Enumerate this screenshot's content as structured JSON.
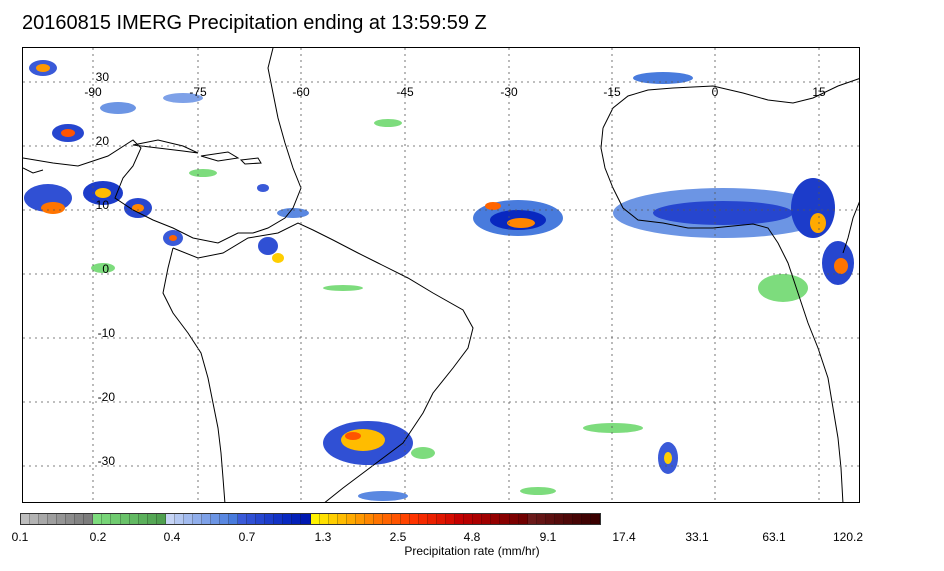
{
  "title": "20160815 IMERG Precipitation ending at 13:59:59 Z",
  "map": {
    "lon_ticks": [
      "-90",
      "-75",
      "-60",
      "-45",
      "-30",
      "-15",
      "0",
      "15"
    ],
    "lat_ticks": [
      "30",
      "20",
      "10",
      "0",
      "-10",
      "-20",
      "-30"
    ],
    "coastline_color": "#000000",
    "grid_color": "#555555"
  },
  "colorbar": {
    "title": "Precipitation rate (mm/hr)",
    "labels": [
      "0.1",
      "0.2",
      "0.4",
      "0.7",
      "1.3",
      "2.5",
      "4.8",
      "9.1",
      "17.4",
      "33.1",
      "63.1",
      "120.2"
    ],
    "colors": [
      "#bdbdbd",
      "#b3b3b3",
      "#a8a8a8",
      "#9e9e9e",
      "#959595",
      "#8c8c8c",
      "#838383",
      "#7c7c7c",
      "#7ddc7d",
      "#77d477",
      "#70cb70",
      "#69c269",
      "#62b962",
      "#5bb05b",
      "#55a755",
      "#4f9f4f",
      "#c6d4f5",
      "#b4c8f2",
      "#a2bbef",
      "#90aeeb",
      "#7ea1e8",
      "#6c95e4",
      "#5a88e1",
      "#487bdd",
      "#3a5ad8",
      "#3050d4",
      "#2646cf",
      "#1c3cca",
      "#1232c5",
      "#0828c0",
      "#0320b8",
      "#0018b0",
      "#fff200",
      "#ffe000",
      "#ffce00",
      "#ffbc00",
      "#ffaa00",
      "#ff9800",
      "#ff8600",
      "#ff7400",
      "#ff6400",
      "#ff5400",
      "#ff4400",
      "#ff3400",
      "#f52a00",
      "#eb2000",
      "#e01600",
      "#d50c00",
      "#c40000",
      "#b80000",
      "#ac0000",
      "#a00000",
      "#940000",
      "#880000",
      "#7c0000",
      "#700000",
      "#6b1a1a",
      "#641515",
      "#5c1010",
      "#550c0c",
      "#4e0808",
      "#470505",
      "#400303",
      "#3a0000"
    ]
  }
}
